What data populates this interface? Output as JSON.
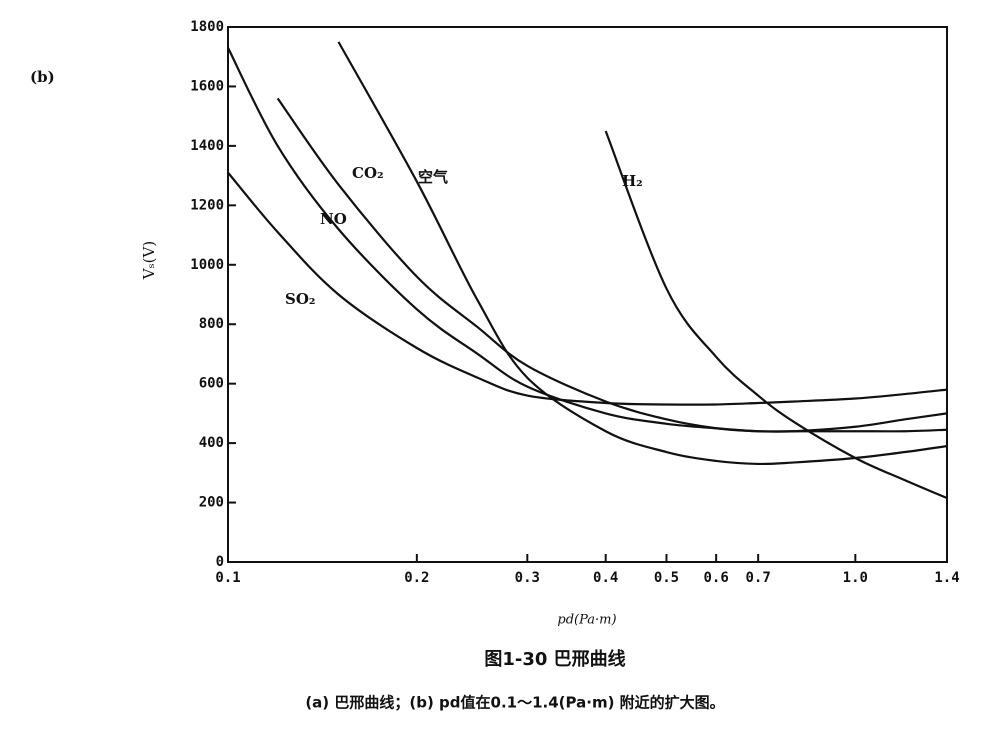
{
  "chart_data": {
    "type": "line",
    "panel_label": "(b)",
    "x_label": "pd(Pa·m)",
    "y_label": "Vₛ(V)",
    "caption": "图1-30  巴邢曲线",
    "subcaption": "(a) 巴邢曲线；(b) pd值在0.1～1.4(Pa·m) 附近的扩大图。",
    "x": [
      0.1,
      0.12,
      0.15,
      0.2,
      0.25,
      0.3,
      0.4,
      0.5,
      0.6,
      0.7,
      0.8,
      1.0,
      1.2,
      1.4
    ],
    "xscale": "log",
    "xlim": [
      0.1,
      1.4
    ],
    "xticks": [
      0.1,
      0.2,
      0.3,
      0.4,
      0.5,
      0.6,
      0.7,
      {
        "value": 1,
        "label": "1.0"
      },
      1.4
    ],
    "ylim": [
      0,
      1800
    ],
    "yticks": [
      0,
      200,
      400,
      600,
      800,
      1000,
      1200,
      1400,
      1600,
      1800
    ],
    "series": [
      {
        "name": "H₂",
        "color": "#111111",
        "values": [
          null,
          null,
          null,
          null,
          null,
          null,
          1450,
          920,
          690,
          560,
          470,
          350,
          275,
          215
        ]
      },
      {
        "name": "空气",
        "color": "#111111",
        "values": [
          null,
          null,
          1750,
          1280,
          880,
          620,
          440,
          370,
          340,
          330,
          335,
          350,
          370,
          390
        ]
      },
      {
        "name": "CO₂",
        "color": "#111111",
        "values": [
          null,
          1560,
          1270,
          960,
          790,
          660,
          540,
          480,
          450,
          440,
          440,
          455,
          480,
          500
        ]
      },
      {
        "name": "NO",
        "color": "#111111",
        "values": [
          1730,
          1400,
          1120,
          850,
          700,
          590,
          500,
          465,
          450,
          440,
          440,
          440,
          440,
          445
        ]
      },
      {
        "name": "SO₂",
        "color": "#111111",
        "values": [
          1310,
          1110,
          900,
          720,
          620,
          560,
          535,
          530,
          530,
          535,
          540,
          550,
          565,
          580
        ]
      }
    ]
  }
}
